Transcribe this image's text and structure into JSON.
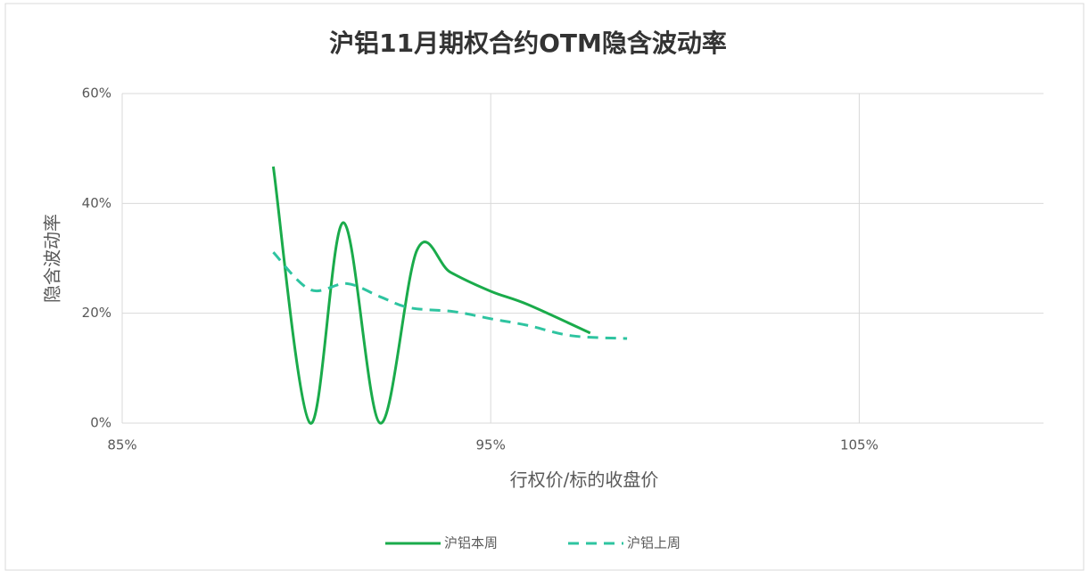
{
  "chart_data": {
    "type": "line",
    "title": "沪铝11月期权合约OTM隐含波动率",
    "xlabel": "行权价/标的收盘价",
    "ylabel": "隐含波动率",
    "xlim": [
      85,
      110
    ],
    "xticks": [
      {
        "value": 85,
        "label": "85%"
      },
      {
        "value": 95,
        "label": "95%"
      },
      {
        "value": 105,
        "label": "105%"
      }
    ],
    "ylim": [
      0,
      60
    ],
    "yticks": [
      {
        "value": 0,
        "label": "0%"
      },
      {
        "value": 20,
        "label": "20%"
      },
      {
        "value": 40,
        "label": "40%"
      },
      {
        "value": 60,
        "label": "60%"
      }
    ],
    "grid": true,
    "legend": "bottom",
    "series": [
      {
        "name": "沪铝本周",
        "color": "#1aab4b",
        "dashed": false,
        "x": [
          89.1,
          90.1,
          91.0,
          92.0,
          93.0,
          93.9,
          95.0,
          96.0,
          97.7
        ],
        "values": [
          46.7,
          0,
          36.5,
          0,
          31.5,
          27.5,
          24,
          21.6,
          16.4
        ]
      },
      {
        "name": "沪铝上周",
        "color": "#2ec4a0",
        "dashed": true,
        "x": [
          89.1,
          90.1,
          91.1,
          92.0,
          92.8,
          94.0,
          95.0,
          96.0,
          97.2,
          98.7
        ],
        "values": [
          31.1,
          24.3,
          25.4,
          23,
          21,
          20.3,
          19,
          17.8,
          15.9,
          15.4
        ]
      }
    ]
  }
}
